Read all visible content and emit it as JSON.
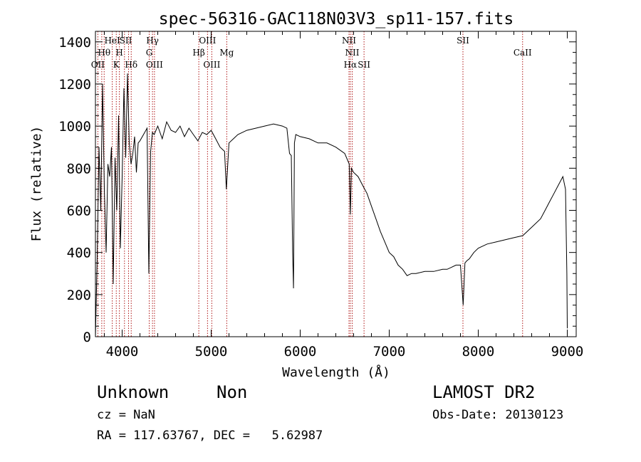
{
  "chart_data": {
    "type": "line",
    "title": "spec-56316-GAC118N03V3_sp11-157.fits",
    "xlabel": "Wavelength (Å)",
    "ylabel": "Flux (relative)",
    "xlim": [
      3700,
      9100
    ],
    "ylim": [
      0,
      1450
    ],
    "x_ticks": [
      4000,
      5000,
      6000,
      7000,
      8000,
      9000
    ],
    "x_tick_labels": [
      "4000",
      "5000",
      "6000",
      "7000",
      "8000",
      "9000"
    ],
    "y_ticks": [
      0,
      200,
      400,
      600,
      800,
      1000,
      1200,
      1400
    ],
    "y_tick_labels": [
      "0",
      "200",
      "400",
      "600",
      "800",
      "1000",
      "1200",
      "1400"
    ],
    "grid": false,
    "series": [
      {
        "x": [
          3700,
          3720,
          3740,
          3760,
          3780,
          3800,
          3820,
          3840,
          3860,
          3880,
          3900,
          3920,
          3940,
          3960,
          3980,
          4000,
          4020,
          4040,
          4060,
          4080,
          4100,
          4120,
          4140,
          4160,
          4180,
          4200,
          4240,
          4280,
          4300,
          4320,
          4340,
          4360,
          4400,
          4450,
          4500,
          4550,
          4600,
          4650,
          4700,
          4750,
          4800,
          4850,
          4900,
          4950,
          5000,
          5050,
          5100,
          5150,
          5170,
          5200,
          5250,
          5300,
          5400,
          5500,
          5600,
          5700,
          5800,
          5850,
          5880,
          5900,
          5915,
          5925,
          5935,
          5950,
          6000,
          6100,
          6200,
          6300,
          6400,
          6500,
          6550,
          6563,
          6575,
          6600,
          6650,
          6700,
          6750,
          6800,
          6850,
          6900,
          6950,
          7000,
          7050,
          7100,
          7150,
          7200,
          7250,
          7300,
          7400,
          7500,
          7600,
          7650,
          7700,
          7750,
          7800,
          7830,
          7850,
          7870,
          7900,
          7950,
          8000,
          8100,
          8200,
          8300,
          8400,
          8500,
          8600,
          8700,
          8750,
          8800,
          8850,
          8900,
          8950,
          8980,
          8995,
          9000
        ],
        "y": [
          0,
          380,
          900,
          600,
          1200,
          700,
          400,
          820,
          760,
          900,
          250,
          850,
          600,
          1050,
          420,
          760,
          1180,
          850,
          1250,
          920,
          820,
          870,
          950,
          780,
          920,
          930,
          960,
          990,
          300,
          880,
          970,
          960,
          1000,
          940,
          1020,
          980,
          970,
          1000,
          950,
          990,
          960,
          930,
          970,
          960,
          980,
          940,
          900,
          880,
          700,
          920,
          940,
          960,
          980,
          990,
          1000,
          1010,
          1000,
          990,
          870,
          860,
          400,
          230,
          920,
          960,
          950,
          940,
          920,
          920,
          900,
          870,
          820,
          580,
          800,
          780,
          760,
          720,
          680,
          620,
          560,
          500,
          450,
          400,
          380,
          340,
          320,
          290,
          300,
          300,
          310,
          310,
          320,
          320,
          330,
          340,
          340,
          150,
          350,
          360,
          370,
          400,
          420,
          440,
          450,
          460,
          470,
          480,
          520,
          560,
          600,
          640,
          680,
          720,
          760,
          700,
          300,
          40
        ]
      }
    ],
    "lines": {
      "color": "#b01818",
      "wavelengths": [
        3727,
        3771,
        3798,
        3889,
        3934,
        3969,
        4026,
        4072,
        4102,
        4304,
        4341,
        4363,
        4861,
        4959,
        5007,
        5175,
        6548,
        6563,
        6584,
        6717,
        7828,
        8498
      ],
      "labels": [
        {
          "text": "HeI",
          "wl": 3889,
          "row": 1
        },
        {
          "text": "SII",
          "wl": 4040,
          "row": 1
        },
        {
          "text": "Hγ",
          "wl": 4341,
          "row": 1
        },
        {
          "text": "OIII",
          "wl": 4959,
          "row": 1
        },
        {
          "text": "NII",
          "wl": 6548,
          "row": 1
        },
        {
          "text": "SII",
          "wl": 7828,
          "row": 1
        },
        {
          "text": "Hθ",
          "wl": 3798,
          "row": 2
        },
        {
          "text": "H",
          "wl": 3969,
          "row": 2
        },
        {
          "text": "G",
          "wl": 4304,
          "row": 2
        },
        {
          "text": "Hβ",
          "wl": 4861,
          "row": 2
        },
        {
          "text": "Mg",
          "wl": 5175,
          "row": 2
        },
        {
          "text": "NII",
          "wl": 6584,
          "row": 2
        },
        {
          "text": "CaII",
          "wl": 8498,
          "row": 2
        },
        {
          "text": "OII",
          "wl": 3727,
          "row": 3
        },
        {
          "text": "K",
          "wl": 3934,
          "row": 3
        },
        {
          "text": "Hδ",
          "wl": 4102,
          "row": 3
        },
        {
          "text": "OIII",
          "wl": 4363,
          "row": 3
        },
        {
          "text": "OIII",
          "wl": 5007,
          "row": 3
        },
        {
          "text": "Hα",
          "wl": 6563,
          "row": 3
        },
        {
          "text": "SII",
          "wl": 6717,
          "row": 3
        }
      ]
    }
  },
  "info": {
    "object_class": "Unknown",
    "object_subclass": "Non",
    "survey": "LAMOST DR2",
    "redshift": "cz = NaN",
    "obs_date": "Obs-Date: 20130123",
    "coords": "RA = 117.63767, DEC =   5.62987"
  }
}
